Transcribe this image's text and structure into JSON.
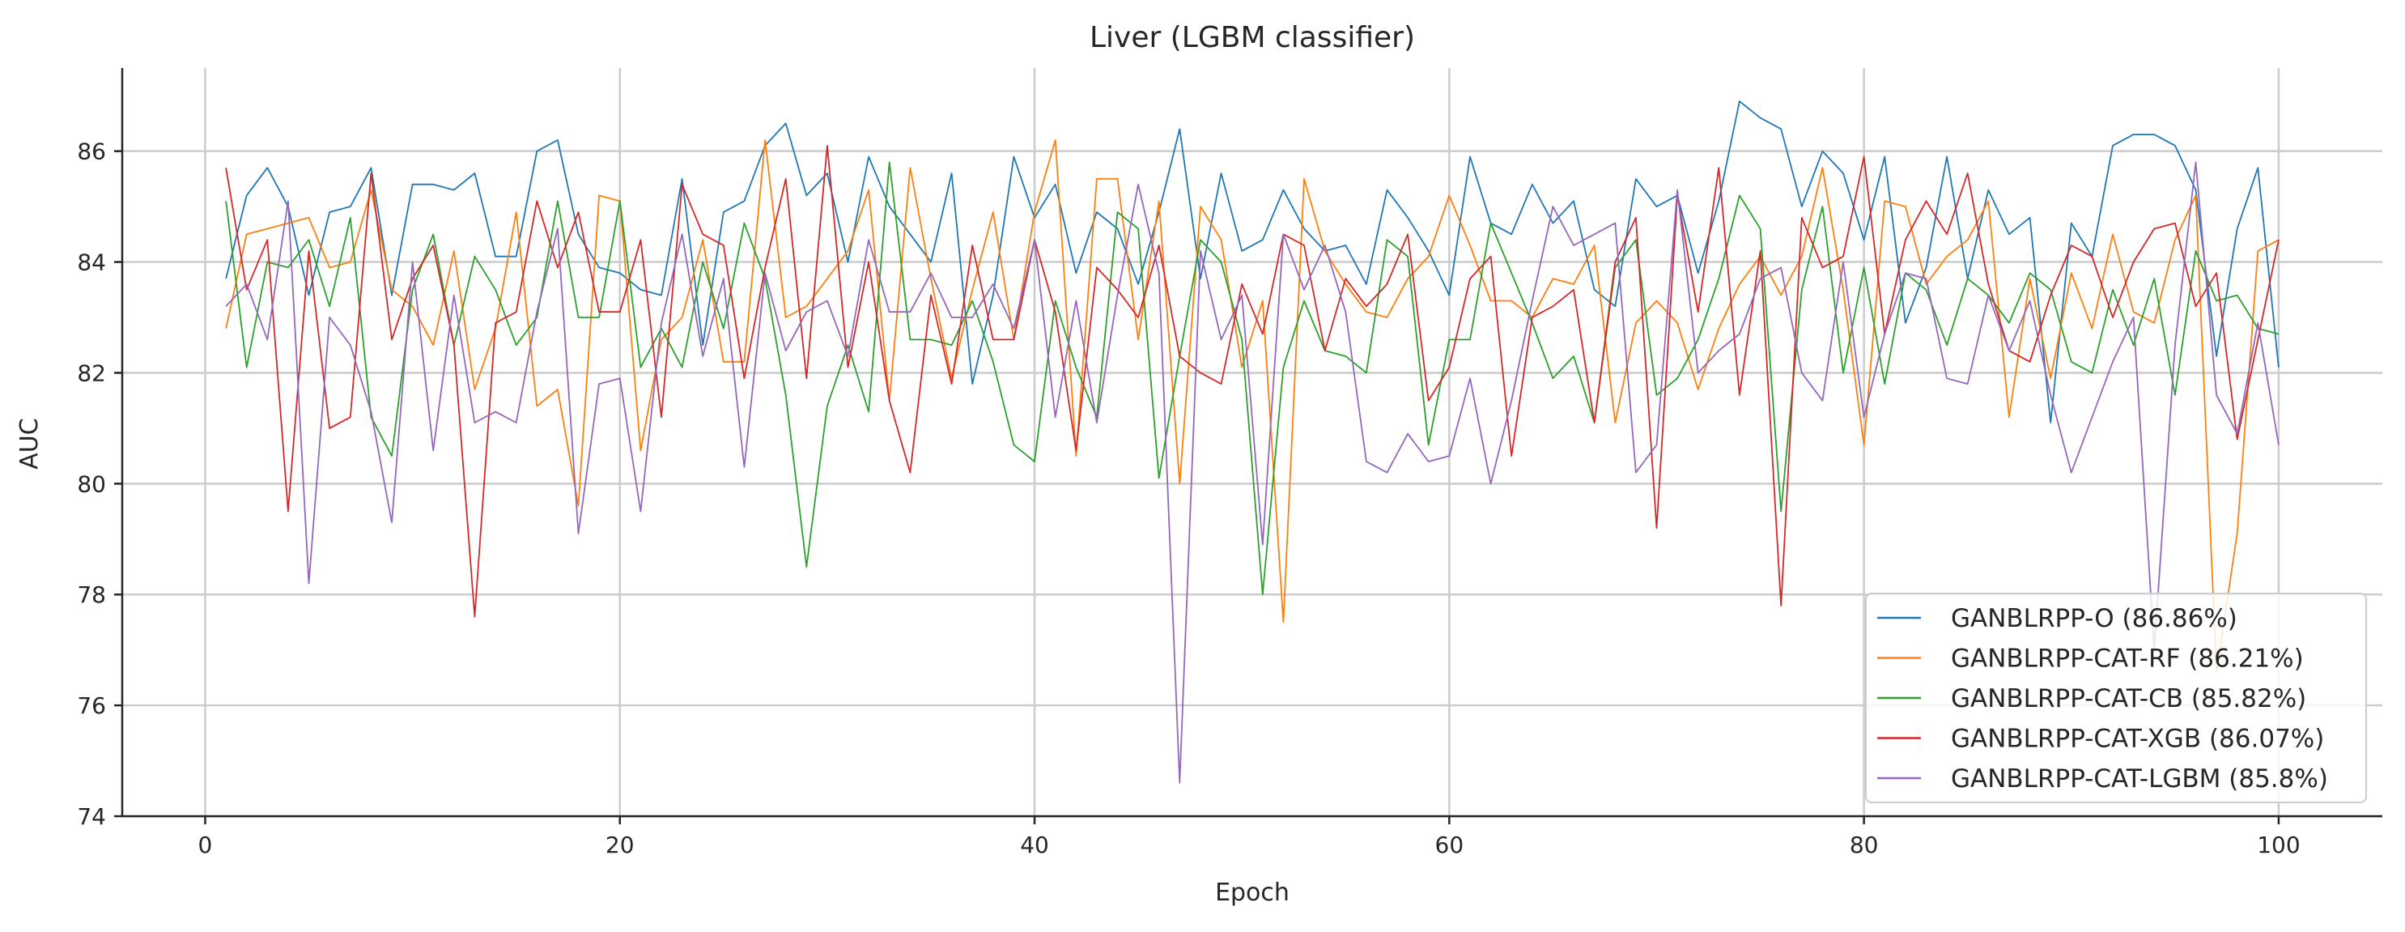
{
  "chart_data": {
    "type": "line",
    "title": "Liver (LGBM classifier)",
    "xlabel": "Epoch",
    "ylabel": "AUC",
    "xlim": [
      -4,
      105
    ],
    "ylim": [
      74,
      87.5
    ],
    "xticks": [
      0,
      20,
      40,
      60,
      80,
      100
    ],
    "yticks": [
      74,
      76,
      78,
      80,
      82,
      84,
      86
    ],
    "grid": true,
    "legend_position": "bottom-right",
    "x": [
      1,
      2,
      3,
      4,
      5,
      6,
      7,
      8,
      9,
      10,
      11,
      12,
      13,
      14,
      15,
      16,
      17,
      18,
      19,
      20,
      21,
      22,
      23,
      24,
      25,
      26,
      27,
      28,
      29,
      30,
      31,
      32,
      33,
      34,
      35,
      36,
      37,
      38,
      39,
      40,
      41,
      42,
      43,
      44,
      45,
      46,
      47,
      48,
      49,
      50,
      51,
      52,
      53,
      54,
      55,
      56,
      57,
      58,
      59,
      60,
      61,
      62,
      63,
      64,
      65,
      66,
      67,
      68,
      69,
      70,
      71,
      72,
      73,
      74,
      75,
      76,
      77,
      78,
      79,
      80,
      81,
      82,
      83,
      84,
      85,
      86,
      87,
      88,
      89,
      90,
      91,
      92,
      93,
      94,
      95,
      96,
      97,
      98,
      99,
      100
    ],
    "series": [
      {
        "name": "GANBLRPP-O (86.86%)",
        "color": "#1f77b4",
        "values": [
          83.7,
          85.2,
          85.7,
          85.0,
          83.4,
          84.9,
          85.0,
          85.7,
          83.4,
          85.4,
          85.4,
          85.3,
          85.6,
          84.1,
          84.1,
          86.0,
          86.2,
          84.5,
          83.9,
          83.8,
          83.5,
          83.4,
          85.5,
          82.5,
          84.9,
          85.1,
          86.1,
          86.5,
          85.2,
          85.6,
          84.0,
          85.9,
          85.0,
          84.5,
          84.0,
          85.6,
          81.8,
          83.4,
          85.9,
          84.8,
          85.4,
          83.8,
          84.9,
          84.6,
          83.6,
          84.9,
          86.4,
          83.7,
          85.6,
          84.2,
          84.4,
          85.3,
          84.6,
          84.2,
          84.3,
          83.6,
          85.3,
          84.8,
          84.2,
          83.4,
          85.9,
          84.7,
          84.5,
          85.4,
          84.7,
          85.1,
          83.5,
          83.2,
          85.5,
          85.0,
          85.2,
          83.8,
          85.1,
          86.9,
          86.6,
          86.4,
          85.0,
          86.0,
          85.6,
          84.4,
          85.9,
          82.9,
          83.9,
          85.9,
          83.7,
          85.3,
          84.5,
          84.8,
          81.1,
          84.7,
          84.1,
          86.1,
          86.3,
          86.3,
          86.1,
          85.3,
          82.3,
          84.6,
          85.7,
          82.1
        ]
      },
      {
        "name": "GANBLRPP-CAT-RF (86.21%)",
        "color": "#ff7f0e",
        "values": [
          82.8,
          84.5,
          84.6,
          84.7,
          84.8,
          83.9,
          84.0,
          85.3,
          83.5,
          83.2,
          82.5,
          84.2,
          81.7,
          82.8,
          84.9,
          81.4,
          81.7,
          79.6,
          85.2,
          85.1,
          80.6,
          82.6,
          83.0,
          84.4,
          82.2,
          82.2,
          86.2,
          83.0,
          83.2,
          83.7,
          84.2,
          85.3,
          81.5,
          85.7,
          83.7,
          81.9,
          83.5,
          84.9,
          82.6,
          84.9,
          86.2,
          80.5,
          85.5,
          85.5,
          82.6,
          85.1,
          80.0,
          85.0,
          84.4,
          82.1,
          83.3,
          77.5,
          85.5,
          84.2,
          83.6,
          83.1,
          83.0,
          83.7,
          84.1,
          85.2,
          84.3,
          83.3,
          83.3,
          83.0,
          83.7,
          83.6,
          84.3,
          81.1,
          82.9,
          83.3,
          82.9,
          81.7,
          82.8,
          83.6,
          84.1,
          83.4,
          84.1,
          85.7,
          83.5,
          80.7,
          85.1,
          85.0,
          83.6,
          84.1,
          84.4,
          85.1,
          81.2,
          83.7,
          81.9,
          83.8,
          82.8,
          84.5,
          83.1,
          82.9,
          84.4,
          85.2,
          76.6,
          79.1,
          84.2,
          84.4
        ]
      },
      {
        "name": "GANBLRPP-CAT-CB (85.82%)",
        "color": "#2ca02c",
        "values": [
          85.1,
          82.1,
          84.0,
          83.9,
          84.4,
          83.2,
          84.8,
          81.2,
          80.5,
          83.5,
          84.5,
          82.5,
          84.1,
          83.5,
          82.5,
          83.0,
          85.1,
          83.0,
          83.0,
          85.1,
          82.1,
          82.8,
          82.1,
          84.0,
          82.8,
          84.7,
          83.7,
          81.6,
          78.5,
          81.4,
          82.5,
          81.3,
          85.8,
          82.6,
          82.6,
          82.5,
          83.3,
          82.2,
          80.7,
          80.4,
          83.3,
          82.1,
          81.2,
          84.9,
          84.6,
          80.1,
          82.3,
          84.4,
          84.0,
          82.6,
          78.0,
          82.1,
          83.3,
          82.4,
          82.3,
          82.0,
          84.4,
          84.1,
          80.7,
          82.6,
          82.6,
          84.7,
          83.8,
          82.9,
          81.9,
          82.3,
          81.1,
          83.9,
          84.4,
          81.6,
          81.9,
          82.6,
          83.7,
          85.2,
          84.6,
          79.5,
          83.5,
          85.0,
          82.0,
          83.9,
          81.8,
          83.8,
          83.5,
          82.5,
          83.7,
          83.4,
          82.9,
          83.8,
          83.5,
          82.2,
          82.0,
          83.5,
          82.5,
          83.7,
          81.6,
          84.2,
          83.3,
          83.4,
          82.8,
          82.7
        ]
      },
      {
        "name": "GANBLRPP-CAT-XGB (86.07%)",
        "color": "#d62728",
        "values": [
          85.7,
          83.5,
          84.4,
          79.5,
          84.2,
          81.0,
          81.2,
          85.6,
          82.6,
          83.7,
          84.3,
          82.5,
          77.6,
          82.9,
          83.1,
          85.1,
          83.9,
          84.9,
          83.1,
          83.1,
          84.4,
          81.2,
          85.4,
          84.5,
          84.3,
          81.9,
          83.9,
          85.5,
          81.9,
          86.1,
          82.1,
          84.0,
          81.5,
          80.2,
          83.4,
          81.8,
          84.3,
          82.6,
          82.6,
          84.4,
          83.1,
          80.6,
          83.9,
          83.5,
          83.0,
          84.3,
          82.3,
          82.0,
          81.8,
          83.6,
          82.7,
          84.5,
          84.3,
          82.4,
          83.7,
          83.2,
          83.6,
          84.5,
          81.5,
          82.1,
          83.7,
          84.1,
          80.5,
          83.0,
          83.2,
          83.5,
          81.1,
          84.0,
          84.8,
          79.2,
          85.2,
          83.1,
          85.7,
          81.6,
          84.2,
          77.8,
          84.8,
          83.9,
          84.1,
          85.9,
          82.7,
          84.4,
          85.1,
          84.5,
          85.6,
          83.6,
          82.4,
          82.2,
          83.4,
          84.3,
          84.1,
          83.0,
          84.0,
          84.6,
          84.7,
          83.2,
          83.8,
          80.8,
          82.6,
          84.4
        ]
      },
      {
        "name": "GANBLRPP-CAT-LGBM (85.8%)",
        "color": "#9467bd",
        "values": [
          83.2,
          83.6,
          82.6,
          85.1,
          78.2,
          83.0,
          82.5,
          81.3,
          79.3,
          84.0,
          80.6,
          83.4,
          81.1,
          81.3,
          81.1,
          83.1,
          84.6,
          79.1,
          81.8,
          81.9,
          79.5,
          82.9,
          84.5,
          82.3,
          83.7,
          80.3,
          83.8,
          82.4,
          83.1,
          83.3,
          82.3,
          84.4,
          83.1,
          83.1,
          83.8,
          83.0,
          83.0,
          83.6,
          82.8,
          84.4,
          81.2,
          83.3,
          81.1,
          83.4,
          85.4,
          83.8,
          74.6,
          84.2,
          82.6,
          83.4,
          78.9,
          84.5,
          83.5,
          84.3,
          83.1,
          80.4,
          80.2,
          80.9,
          80.4,
          80.5,
          81.9,
          80.0,
          81.5,
          83.3,
          85.0,
          84.3,
          84.5,
          84.7,
          80.2,
          80.7,
          85.3,
          82.0,
          82.4,
          82.7,
          83.7,
          83.9,
          82.0,
          81.5,
          84.0,
          81.2,
          82.7,
          83.8,
          83.7,
          81.9,
          81.8,
          83.4,
          82.4,
          83.3,
          81.6,
          80.2,
          81.2,
          82.2,
          83.0,
          77.0,
          82.5,
          85.8,
          81.6,
          80.9,
          82.9,
          80.7
        ]
      }
    ]
  }
}
